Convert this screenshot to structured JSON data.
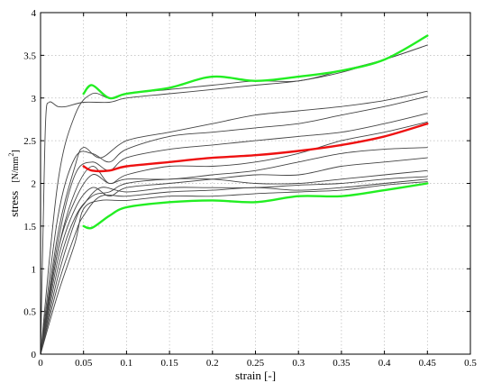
{
  "chart_data": {
    "type": "line",
    "xlabel": "strain [-]",
    "ylabel": {
      "main": "stress",
      "unit": "[N/mm",
      "sup": "2",
      "close": "]"
    },
    "xlim": [
      0,
      0.5
    ],
    "ylim": [
      0,
      4
    ],
    "x_ticks": [
      "0",
      "0.05",
      "0.1",
      "0.15",
      "0.2",
      "0.25",
      "0.3",
      "0.35",
      "0.4",
      "0.45",
      "0.5"
    ],
    "y_ticks": [
      "0",
      "0.5",
      "1",
      "1.5",
      "2",
      "2.5",
      "3",
      "3.5",
      "4"
    ],
    "grid": true,
    "colors": {
      "specimens": "#444444",
      "envelope": "#22ee22",
      "mean": "#ee1111"
    },
    "series": [
      {
        "group": "specimen",
        "points": [
          [
            0,
            0
          ],
          [
            0.003,
            1.5
          ],
          [
            0.006,
            2.75
          ],
          [
            0.01,
            2.95
          ],
          [
            0.02,
            2.9
          ],
          [
            0.03,
            2.9
          ],
          [
            0.05,
            2.95
          ],
          [
            0.08,
            2.95
          ],
          [
            0.1,
            3.0
          ],
          [
            0.15,
            3.05
          ],
          [
            0.2,
            3.1
          ],
          [
            0.25,
            3.15
          ],
          [
            0.3,
            3.2
          ],
          [
            0.35,
            3.3
          ],
          [
            0.4,
            3.45
          ],
          [
            0.45,
            3.62
          ]
        ]
      },
      {
        "group": "specimen",
        "points": [
          [
            0,
            0
          ],
          [
            0.02,
            2.0
          ],
          [
            0.04,
            2.8
          ],
          [
            0.06,
            3.05
          ],
          [
            0.08,
            3.0
          ],
          [
            0.1,
            3.05
          ],
          [
            0.15,
            3.1
          ],
          [
            0.2,
            3.15
          ],
          [
            0.25,
            3.2
          ],
          [
            0.3,
            3.2
          ],
          [
            0.35,
            3.32
          ],
          [
            0.4,
            3.45
          ],
          [
            0.45,
            3.62
          ]
        ]
      },
      {
        "group": "specimen",
        "points": [
          [
            0,
            0
          ],
          [
            0.02,
            1.4
          ],
          [
            0.04,
            2.2
          ],
          [
            0.05,
            2.42
          ],
          [
            0.07,
            2.3
          ],
          [
            0.1,
            2.5
          ],
          [
            0.15,
            2.6
          ],
          [
            0.2,
            2.7
          ],
          [
            0.25,
            2.8
          ],
          [
            0.3,
            2.85
          ],
          [
            0.35,
            2.9
          ],
          [
            0.4,
            2.97
          ],
          [
            0.45,
            3.08
          ]
        ]
      },
      {
        "group": "specimen",
        "points": [
          [
            0,
            0
          ],
          [
            0.02,
            1.6
          ],
          [
            0.04,
            2.3
          ],
          [
            0.06,
            2.35
          ],
          [
            0.08,
            2.25
          ],
          [
            0.1,
            2.4
          ],
          [
            0.15,
            2.55
          ],
          [
            0.2,
            2.6
          ],
          [
            0.25,
            2.65
          ],
          [
            0.3,
            2.7
          ],
          [
            0.35,
            2.8
          ],
          [
            0.4,
            2.9
          ],
          [
            0.45,
            3.02
          ]
        ]
      },
      {
        "group": "specimen",
        "points": [
          [
            0,
            0
          ],
          [
            0.02,
            1.3
          ],
          [
            0.04,
            2.1
          ],
          [
            0.06,
            2.25
          ],
          [
            0.08,
            2.15
          ],
          [
            0.1,
            2.3
          ],
          [
            0.15,
            2.4
          ],
          [
            0.2,
            2.45
          ],
          [
            0.25,
            2.5
          ],
          [
            0.3,
            2.55
          ],
          [
            0.35,
            2.6
          ],
          [
            0.4,
            2.7
          ],
          [
            0.45,
            2.82
          ]
        ]
      },
      {
        "group": "specimen",
        "points": [
          [
            0,
            0
          ],
          [
            0.02,
            1.2
          ],
          [
            0.04,
            1.9
          ],
          [
            0.06,
            2.2
          ],
          [
            0.08,
            2.0
          ],
          [
            0.1,
            2.1
          ],
          [
            0.15,
            2.2
          ],
          [
            0.2,
            2.2
          ],
          [
            0.25,
            2.25
          ],
          [
            0.3,
            2.35
          ],
          [
            0.35,
            2.5
          ],
          [
            0.4,
            2.6
          ],
          [
            0.45,
            2.72
          ]
        ]
      },
      {
        "group": "specimen",
        "points": [
          [
            0,
            0
          ],
          [
            0.02,
            1.2
          ],
          [
            0.04,
            1.8
          ],
          [
            0.06,
            2.1
          ],
          [
            0.08,
            2.0
          ],
          [
            0.1,
            2.05
          ],
          [
            0.15,
            2.05
          ],
          [
            0.2,
            2.1
          ],
          [
            0.25,
            2.15
          ],
          [
            0.3,
            2.25
          ],
          [
            0.35,
            2.35
          ],
          [
            0.4,
            2.4
          ],
          [
            0.45,
            2.42
          ]
        ]
      },
      {
        "group": "specimen",
        "points": [
          [
            0,
            0
          ],
          [
            0.02,
            1.1
          ],
          [
            0.04,
            1.7
          ],
          [
            0.06,
            1.95
          ],
          [
            0.08,
            1.85
          ],
          [
            0.1,
            1.95
          ],
          [
            0.15,
            2.0
          ],
          [
            0.2,
            2.05
          ],
          [
            0.25,
            2.1
          ],
          [
            0.3,
            2.1
          ],
          [
            0.35,
            2.2
          ],
          [
            0.4,
            2.25
          ],
          [
            0.45,
            2.3
          ]
        ]
      },
      {
        "group": "specimen",
        "points": [
          [
            0,
            0
          ],
          [
            0.02,
            1.0
          ],
          [
            0.04,
            1.6
          ],
          [
            0.06,
            1.85
          ],
          [
            0.08,
            1.9
          ],
          [
            0.1,
            2.0
          ],
          [
            0.15,
            2.05
          ],
          [
            0.2,
            2.05
          ],
          [
            0.25,
            2.0
          ],
          [
            0.3,
            2.0
          ],
          [
            0.35,
            2.05
          ],
          [
            0.4,
            2.1
          ],
          [
            0.45,
            2.15
          ]
        ]
      },
      {
        "group": "specimen",
        "points": [
          [
            0,
            0
          ],
          [
            0.02,
            0.9
          ],
          [
            0.04,
            1.55
          ],
          [
            0.05,
            1.75
          ],
          [
            0.07,
            1.95
          ],
          [
            0.1,
            1.9
          ],
          [
            0.15,
            1.95
          ],
          [
            0.2,
            1.95
          ],
          [
            0.25,
            1.95
          ],
          [
            0.3,
            1.98
          ],
          [
            0.35,
            2.0
          ],
          [
            0.4,
            2.05
          ],
          [
            0.45,
            2.08
          ]
        ]
      },
      {
        "group": "specimen",
        "points": [
          [
            0,
            0
          ],
          [
            0.02,
            0.8
          ],
          [
            0.04,
            1.4
          ],
          [
            0.05,
            1.62
          ],
          [
            0.07,
            1.85
          ],
          [
            0.1,
            1.85
          ],
          [
            0.15,
            1.9
          ],
          [
            0.2,
            1.92
          ],
          [
            0.25,
            1.95
          ],
          [
            0.3,
            1.92
          ],
          [
            0.35,
            1.95
          ],
          [
            0.4,
            2.0
          ],
          [
            0.45,
            2.05
          ]
        ]
      },
      {
        "group": "specimen",
        "points": [
          [
            0,
            0
          ],
          [
            0.02,
            0.7
          ],
          [
            0.04,
            1.3
          ],
          [
            0.05,
            1.7
          ],
          [
            0.07,
            1.8
          ],
          [
            0.1,
            1.8
          ],
          [
            0.15,
            1.85
          ],
          [
            0.2,
            1.85
          ],
          [
            0.25,
            1.88
          ],
          [
            0.3,
            1.9
          ],
          [
            0.35,
            1.92
          ],
          [
            0.4,
            1.98
          ],
          [
            0.45,
            2.02
          ]
        ]
      },
      {
        "group": "envelope",
        "points": [
          [
            0.05,
            1.5
          ],
          [
            0.06,
            1.48
          ],
          [
            0.08,
            1.62
          ],
          [
            0.1,
            1.72
          ],
          [
            0.15,
            1.78
          ],
          [
            0.2,
            1.8
          ],
          [
            0.25,
            1.78
          ],
          [
            0.3,
            1.85
          ],
          [
            0.35,
            1.85
          ],
          [
            0.4,
            1.92
          ],
          [
            0.45,
            2.0
          ]
        ]
      },
      {
        "group": "envelope",
        "points": [
          [
            0.05,
            3.05
          ],
          [
            0.06,
            3.15
          ],
          [
            0.08,
            3.0
          ],
          [
            0.1,
            3.05
          ],
          [
            0.15,
            3.12
          ],
          [
            0.2,
            3.25
          ],
          [
            0.25,
            3.2
          ],
          [
            0.3,
            3.25
          ],
          [
            0.35,
            3.32
          ],
          [
            0.4,
            3.45
          ],
          [
            0.45,
            3.73
          ]
        ]
      },
      {
        "group": "mean",
        "points": [
          [
            0.05,
            2.2
          ],
          [
            0.06,
            2.15
          ],
          [
            0.08,
            2.15
          ],
          [
            0.1,
            2.2
          ],
          [
            0.15,
            2.25
          ],
          [
            0.2,
            2.3
          ],
          [
            0.25,
            2.33
          ],
          [
            0.3,
            2.38
          ],
          [
            0.35,
            2.45
          ],
          [
            0.4,
            2.55
          ],
          [
            0.45,
            2.7
          ]
        ]
      }
    ]
  }
}
